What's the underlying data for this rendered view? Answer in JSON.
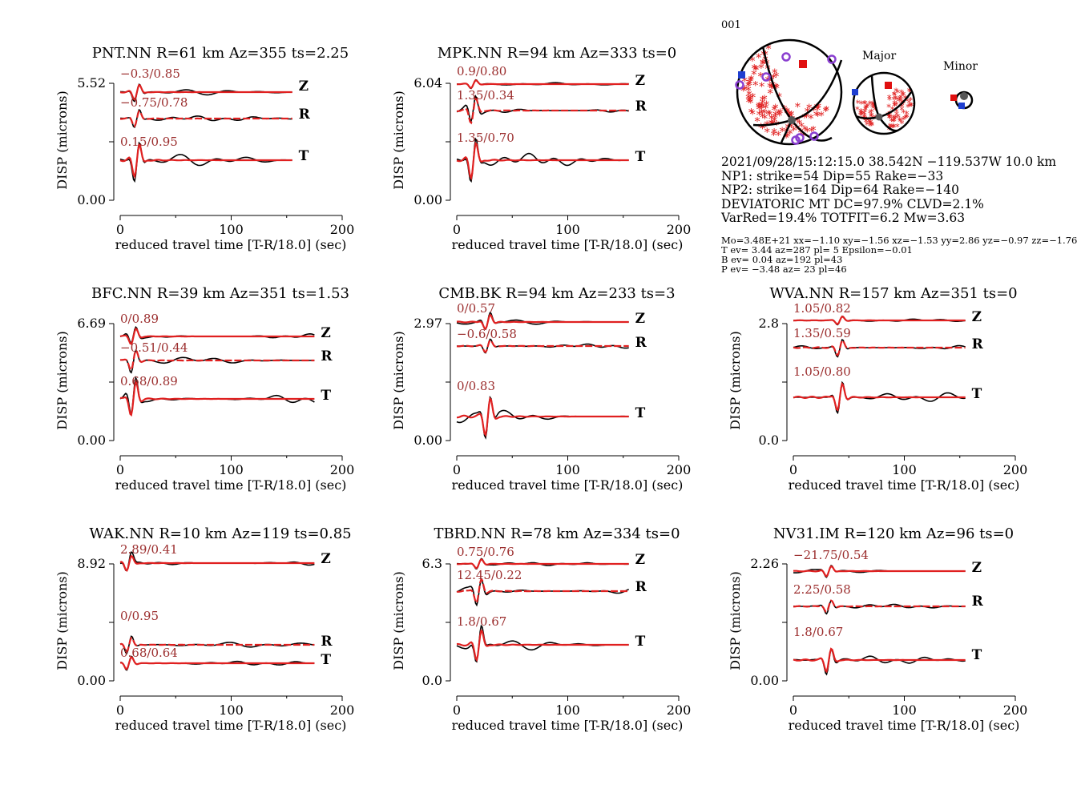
{
  "event_id": "001",
  "mechanism": {
    "major_label": "Major",
    "minor_label": "Minor",
    "lines": [
      "2021/09/28/15:12:15.0 38.542N −119.537W 10.0 km",
      "NP1: strike=54 Dip=55 Rake=−33",
      "NP2: strike=164 Dip=64 Rake=−140",
      "DEVIATORIC MT DC=97.9% CLVD=2.1%",
      "VarRed=19.4% TOTFIT=6.2 Mw=3.63"
    ],
    "details": [
      "Mo=3.48E+21 xx=−1.10 xy=−1.56 xz=−1.53 yy=2.86 yz=−0.97 zz=−1.76",
      "T ev=  3.44 az=287 pl= 5 Epsilon=−0.01",
      "B ev=  0.04 az=192 pl=43",
      "P ev= −3.48 az= 23 pl=46"
    ],
    "colors": {
      "observed": "#000000",
      "synthetic": "#e02020",
      "tension_fill": "#e02020",
      "p_axis": "#1f3fd0",
      "t_axis": "#e01010",
      "station_marker": "#8a3fd0",
      "null_axis": "#555555"
    }
  },
  "chart_data": [
    {
      "type": "line",
      "title": "PNT.NN R=61 km Az=355 ts=2.25",
      "xlabel": "reduced travel time [T-R/18.0] (sec)",
      "ylabel": "DISP (microns)",
      "xlim": [
        0,
        200
      ],
      "xticks": [
        "0",
        "100",
        "200"
      ],
      "yticks": [
        "0.00",
        "5.52"
      ],
      "series": [
        {
          "name": "Z",
          "fit": "−0.3/0.85"
        },
        {
          "name": "R",
          "fit": "−0.75/0.78"
        },
        {
          "name": "T",
          "fit": "0.15/0.95"
        }
      ]
    },
    {
      "type": "line",
      "title": "MPK.NN R=94 km Az=333 ts=0",
      "xlabel": "reduced travel time [T-R/18.0] (sec)",
      "ylabel": "DISP (microns)",
      "xlim": [
        0,
        200
      ],
      "xticks": [
        "0",
        "100",
        "200"
      ],
      "yticks": [
        "0.00",
        "6.04"
      ],
      "series": [
        {
          "name": "Z",
          "fit": "0.9/0.80"
        },
        {
          "name": "R",
          "fit": "1.35/0.34"
        },
        {
          "name": "T",
          "fit": "1.35/0.70"
        }
      ]
    },
    {
      "type": "line",
      "title": "BFC.NN R=39 km Az=351 ts=1.53",
      "xlabel": "reduced travel time [T-R/18.0] (sec)",
      "ylabel": "DISP (microns)",
      "xlim": [
        0,
        200
      ],
      "xticks": [
        "0",
        "100",
        "200"
      ],
      "yticks": [
        "0.00",
        "6.69"
      ],
      "series": [
        {
          "name": "Z",
          "fit": "0/0.89"
        },
        {
          "name": "R",
          "fit": "−0.51/0.44"
        },
        {
          "name": "T",
          "fit": "0.68/0.89"
        }
      ]
    },
    {
      "type": "line",
      "title": "CMB.BK R=94 km Az=233 ts=3",
      "xlabel": "reduced travel time [T-R/18.0] (sec)",
      "ylabel": "DISP (microns)",
      "xlim": [
        0,
        200
      ],
      "xticks": [
        "0",
        "100",
        "200"
      ],
      "yticks": [
        "0.00",
        "2.97"
      ],
      "series": [
        {
          "name": "Z",
          "fit": "0/0.57"
        },
        {
          "name": "R",
          "fit": "−0.6/0.58"
        },
        {
          "name": "T",
          "fit": "0/0.83"
        }
      ]
    },
    {
      "type": "line",
      "title": "WVA.NN R=157 km Az=351 ts=0",
      "xlabel": "reduced travel time [T-R/18.0] (sec)",
      "ylabel": "DISP (microns)",
      "xlim": [
        0,
        200
      ],
      "xticks": [
        "0",
        "100",
        "200"
      ],
      "yticks": [
        "0.0",
        "2.8"
      ],
      "series": [
        {
          "name": "Z",
          "fit": "1.05/0.82"
        },
        {
          "name": "R",
          "fit": "1.35/0.59"
        },
        {
          "name": "T",
          "fit": "1.05/0.80"
        }
      ]
    },
    {
      "type": "line",
      "title": "WAK.NN R=10 km Az=119 ts=0.85",
      "xlabel": "reduced travel time [T-R/18.0] (sec)",
      "ylabel": "DISP (microns)",
      "xlim": [
        0,
        200
      ],
      "xticks": [
        "0",
        "100",
        "200"
      ],
      "yticks": [
        "0.00",
        "8.92"
      ],
      "series": [
        {
          "name": "Z",
          "fit": "2.89/0.41"
        },
        {
          "name": "R",
          "fit": "0/0.95"
        },
        {
          "name": "T",
          "fit": "0.68/0.64"
        }
      ]
    },
    {
      "type": "line",
      "title": "TBRD.NN R=78 km Az=334 ts=0",
      "xlabel": "reduced travel time [T-R/18.0] (sec)",
      "ylabel": "DISP (microns)",
      "xlim": [
        0,
        200
      ],
      "xticks": [
        "0",
        "100",
        "200"
      ],
      "yticks": [
        "0.0",
        "6.3"
      ],
      "series": [
        {
          "name": "Z",
          "fit": "0.75/0.76"
        },
        {
          "name": "R",
          "fit": "12.45/0.22"
        },
        {
          "name": "T",
          "fit": "1.8/0.67"
        }
      ]
    },
    {
      "type": "line",
      "title": "NV31.IM R=120 km Az=96 ts=0",
      "xlabel": "reduced travel time [T-R/18.0] (sec)",
      "ylabel": "DISP (microns)",
      "xlim": [
        0,
        200
      ],
      "xticks": [
        "0",
        "100",
        "200"
      ],
      "yticks": [
        "0.00",
        "2.26"
      ],
      "series": [
        {
          "name": "Z",
          "fit": "−21.75/0.54"
        },
        {
          "name": "R",
          "fit": "2.25/0.58"
        },
        {
          "name": "T",
          "fit": "1.8/0.67"
        }
      ]
    }
  ]
}
